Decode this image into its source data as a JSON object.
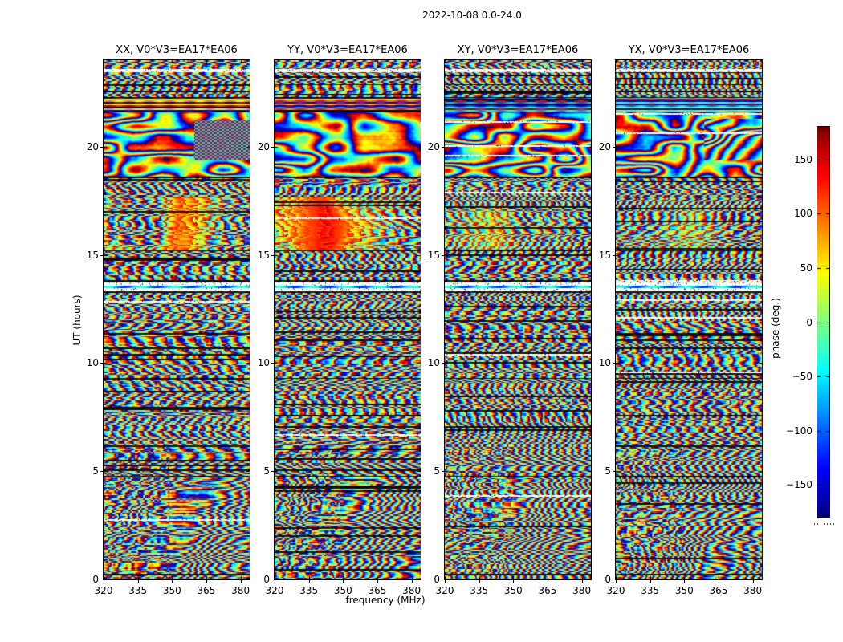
{
  "window": {
    "background": "#ffffff"
  },
  "chart_data": {
    "type": "heatmap",
    "title": "2022-10-08 0.0-24.0",
    "xlabel": "frequency (MHz)",
    "ylabel": "UT (hours)",
    "xlim": [
      320,
      384
    ],
    "ylim": [
      0,
      24
    ],
    "xticks": [
      320,
      335,
      350,
      365,
      380
    ],
    "yticks": [
      0,
      5,
      10,
      15,
      20
    ],
    "grid": false,
    "legend": "none",
    "panels": [
      {
        "pol": "XX",
        "label": "XX, V0*V3=EA17*EA06"
      },
      {
        "pol": "YY",
        "label": "YY, V0*V3=EA17*EA06"
      },
      {
        "pol": "XY",
        "label": "XY, V0*V3=EA17*EA06"
      },
      {
        "pol": "YX",
        "label": "YX, V0*V3=EA17*EA06"
      }
    ],
    "colorbar": {
      "label": "phase (deg.)",
      "range": [
        -180,
        180
      ],
      "ticks": [
        150,
        100,
        50,
        0,
        -50,
        -100,
        -150
      ],
      "colormap": "jet",
      "colormap_stops": [
        "#000080",
        "#0000ff",
        "#00ffff",
        "#80ff80",
        "#ffff00",
        "#ff0000",
        "#800000"
      ]
    },
    "features": [
      "dense interferometric fringe phase noise spanning full -180..180 deg over 320-384 MHz and 0-24 h UT",
      "white flagged time rows near UT 13.4-13.8 h in all panels",
      "white flagged row near UT 23.5-23.6 h",
      "smooth coherent phase-wrap swirls (large red/blue patches) between UT ~18.6 and ~21.6 h",
      "cross-hatched block above ~365 MHz between UT ~19.4 and ~21.2 h",
      "horizontal striped phase bands UT ~21.6-22.3 h",
      "warm red/orange phase patch UT ~15.2-17.7 h around 330-360 MHz, strongest in XX and YY",
      "thin black flagged rows scattered throughout",
      "diagonal fringe arcs in lower region UT 0-5 h"
    ]
  }
}
